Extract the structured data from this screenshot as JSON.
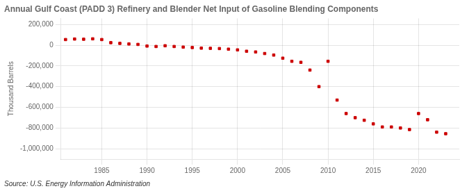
{
  "chart_data": {
    "type": "scatter",
    "title": "Annual Gulf Coast (PADD 3) Refinery and Blender Net Input of Gasoline Blending Components",
    "ylabel": "Thousand Barrels",
    "annotation": "Source: U.S. Energy Information Administration",
    "x": [
      1981,
      1982,
      1983,
      1984,
      1985,
      1986,
      1987,
      1988,
      1989,
      1990,
      1991,
      1992,
      1993,
      1994,
      1995,
      1996,
      1997,
      1998,
      1999,
      2000,
      2001,
      2002,
      2003,
      2004,
      2005,
      2006,
      2007,
      2008,
      2009,
      2010,
      2011,
      2012,
      2013,
      2014,
      2015,
      2016,
      2017,
      2018,
      2019,
      2020,
      2021,
      2022,
      2023
    ],
    "values": [
      55000,
      60000,
      58000,
      62000,
      55000,
      25000,
      18000,
      12000,
      8000,
      -8000,
      -12000,
      -5000,
      -12000,
      -18000,
      -22000,
      -28000,
      -30000,
      -32000,
      -38000,
      -45000,
      -58000,
      -65000,
      -80000,
      -95000,
      -125000,
      -155000,
      -165000,
      -240000,
      -400000,
      -155000,
      -530000,
      -660000,
      -700000,
      -725000,
      -760000,
      -790000,
      -790000,
      -800000,
      -815000,
      -660000,
      -720000,
      -840000,
      -855000
    ],
    "color": "#cc0000",
    "marker": "square",
    "xlim": [
      1980.5,
      2024.5
    ],
    "xticks": [
      1985,
      1990,
      1995,
      2000,
      2005,
      2010,
      2015,
      2020
    ],
    "ylim": [
      -1100000,
      260000
    ],
    "yticks": [
      {
        "value": 200000,
        "label": "200,000"
      },
      0,
      {
        "value": -200000,
        "label": "-200,000"
      },
      {
        "value": -400000,
        "label": "-400,000"
      },
      {
        "value": -600000,
        "label": "-600,000"
      },
      {
        "value": -800000,
        "label": "-800,000"
      },
      {
        "value": -1000000,
        "label": "-1,000,000"
      }
    ],
    "grid": true
  }
}
